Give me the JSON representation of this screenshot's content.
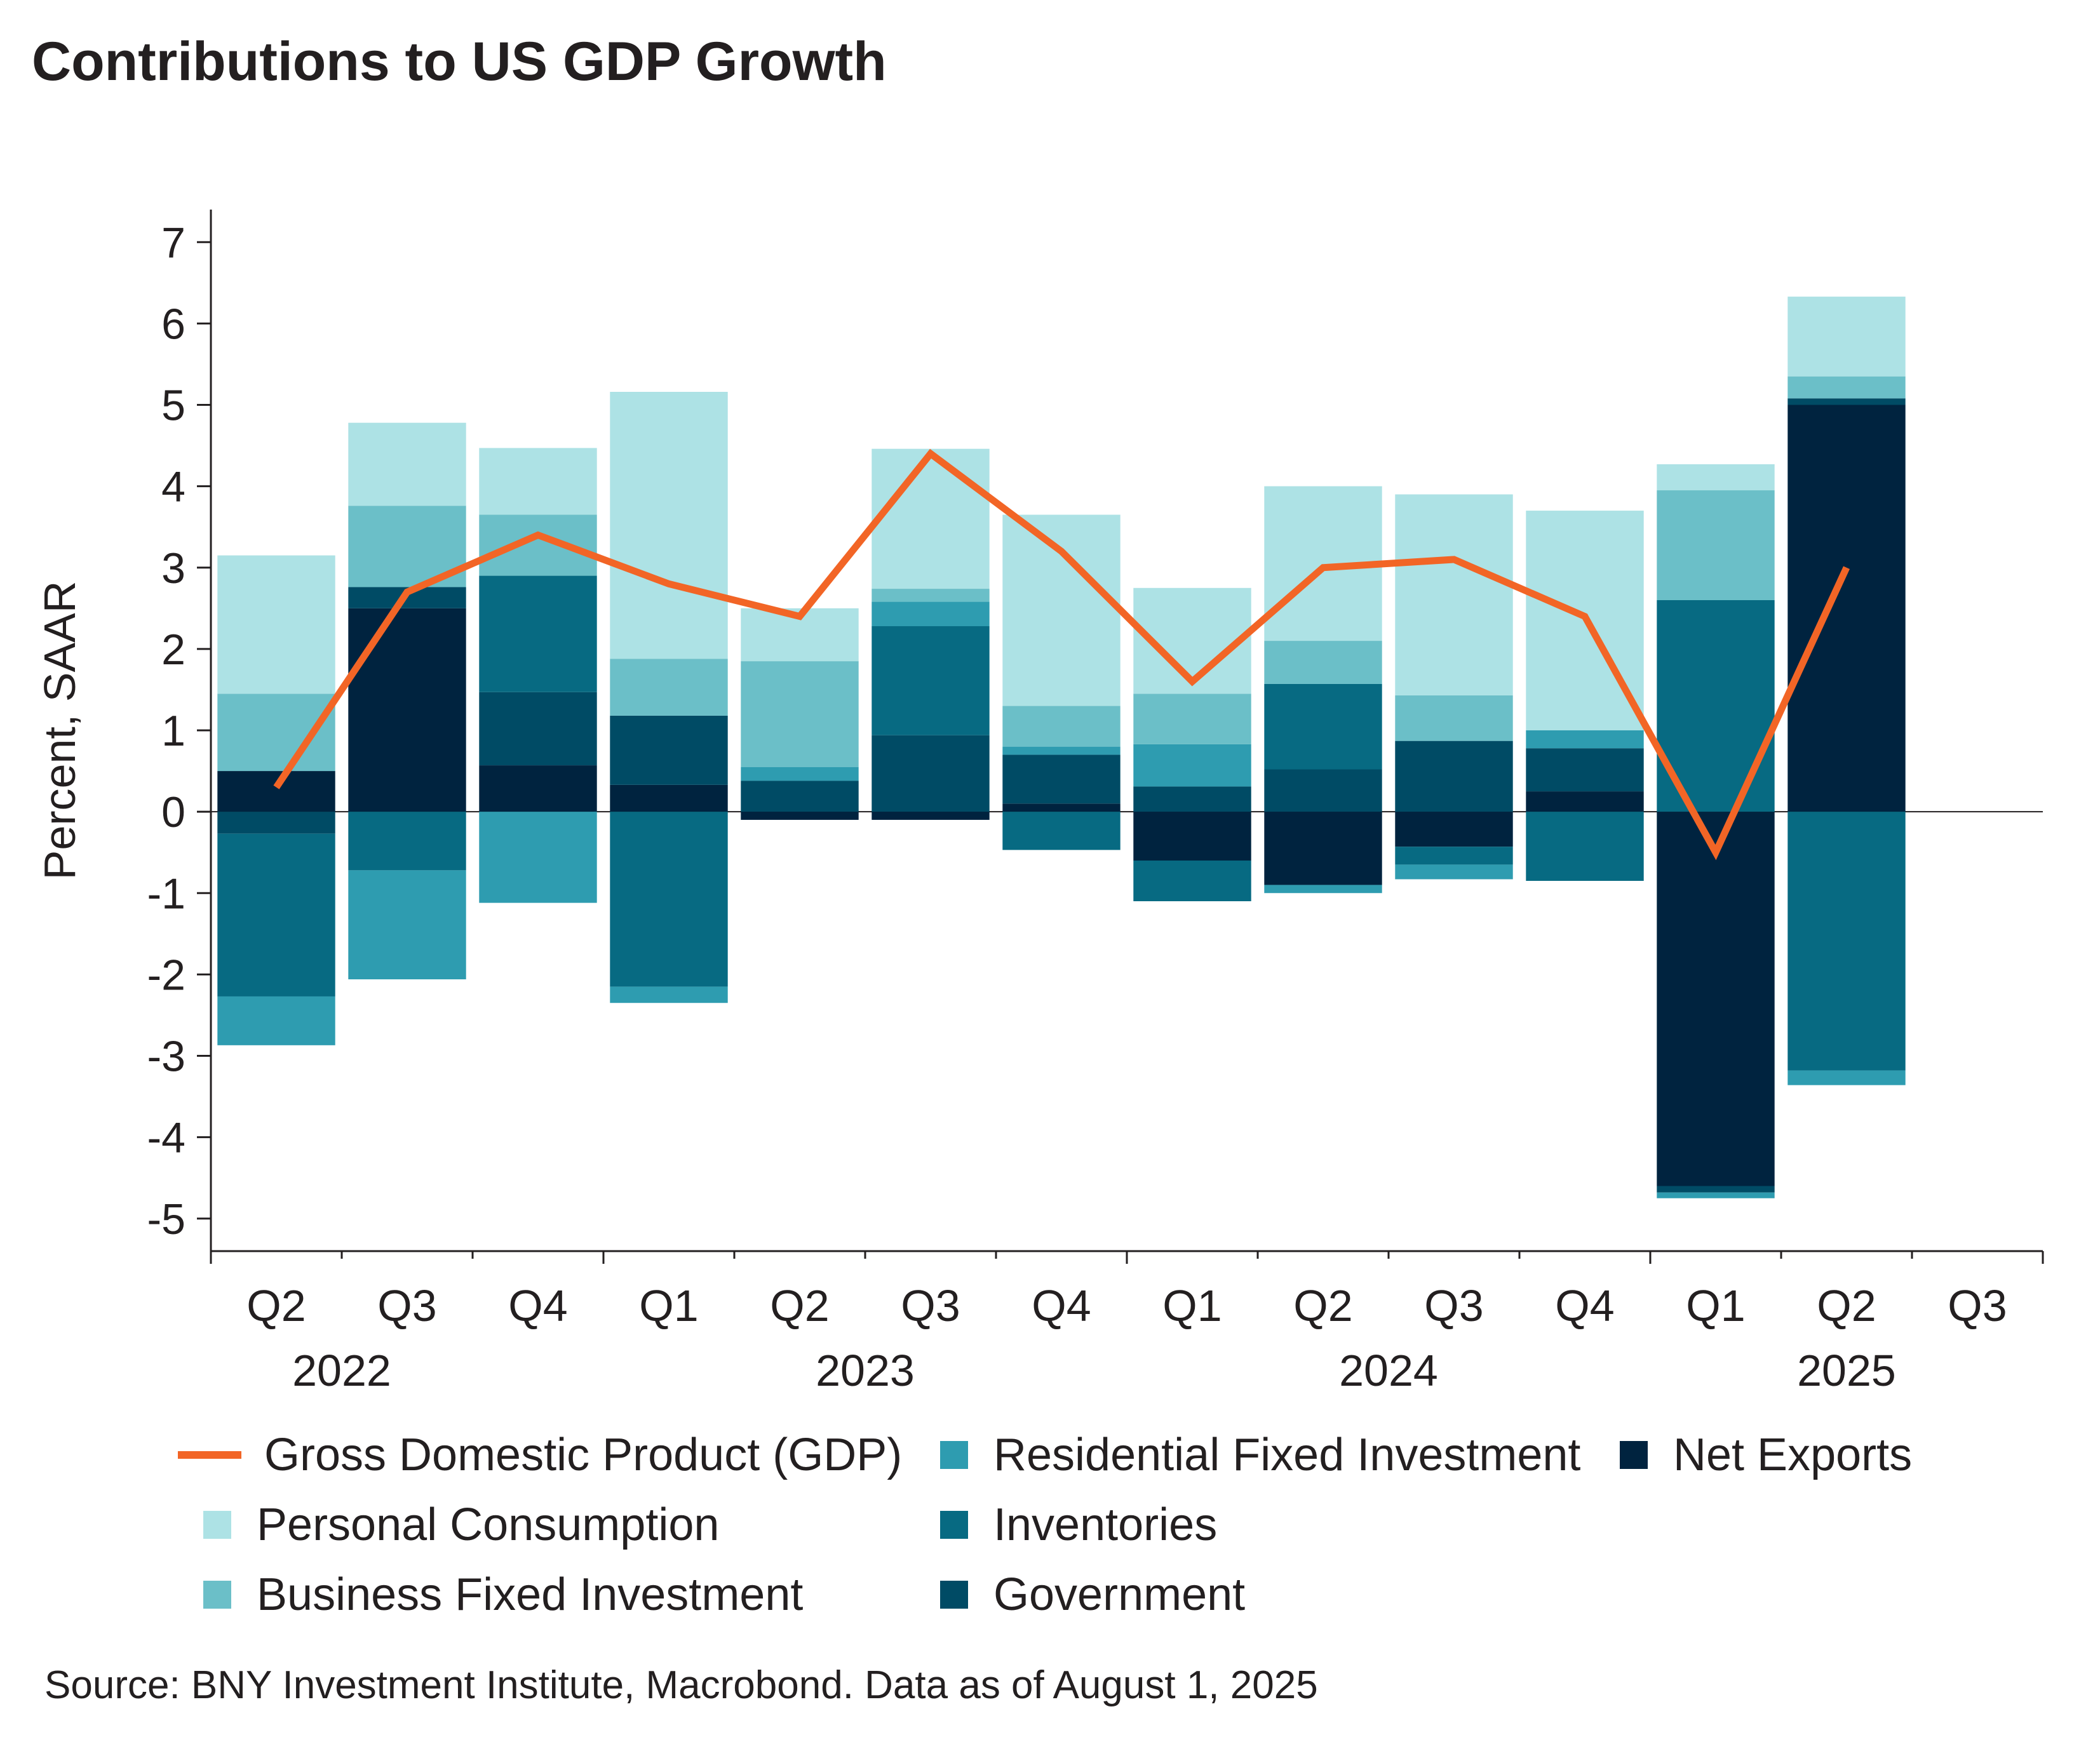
{
  "title": "Contributions to US GDP Growth",
  "source": "Source: BNY Investment Institute, Macrobond. Data as of August 1, 2025",
  "chart_data": {
    "type": "bar",
    "stacked": true,
    "ylabel": "Percent, SAAR",
    "ylim": [
      -5.4,
      7.4
    ],
    "yticks": [
      7,
      6,
      5,
      4,
      3,
      2,
      1,
      0,
      -1,
      -2,
      -3,
      -4,
      -5
    ],
    "categories": [
      "Q2",
      "Q3",
      "Q4",
      "Q1",
      "Q2",
      "Q3",
      "Q4",
      "Q1",
      "Q2",
      "Q3",
      "Q4",
      "Q1",
      "Q2",
      "Q3"
    ],
    "year_labels": [
      {
        "label": "2022",
        "center_index": 0.5
      },
      {
        "label": "2023",
        "center_index": 4.5
      },
      {
        "label": "2024",
        "center_index": 8.5
      },
      {
        "label": "2025",
        "center_index": 12
      }
    ],
    "series": [
      {
        "name": "Net Exports",
        "color": "#00233f",
        "values": [
          0.5,
          2.5,
          0.57,
          0.33,
          -0.1,
          -0.1,
          0.1,
          -0.6,
          -0.9,
          -0.43,
          0.25,
          -4.6,
          5.0,
          null
        ]
      },
      {
        "name": "Government",
        "color": "#004b65",
        "values": [
          -0.27,
          0.26,
          0.9,
          0.85,
          0.38,
          0.94,
          0.6,
          0.31,
          0.52,
          0.87,
          0.53,
          -0.08,
          0.08,
          null
        ]
      },
      {
        "name": "Inventories",
        "color": "#076a82",
        "values": [
          -2.0,
          -0.72,
          1.43,
          -2.15,
          0.0,
          1.34,
          -0.47,
          -0.5,
          1.05,
          -0.22,
          -0.85,
          2.6,
          -3.18,
          null
        ]
      },
      {
        "name": "Residential Fixed Investment",
        "color": "#2e9cb0",
        "values": [
          -0.6,
          -1.34,
          -1.12,
          -0.2,
          0.17,
          0.3,
          0.1,
          0.52,
          -0.1,
          -0.18,
          0.22,
          -0.07,
          -0.18,
          null
        ]
      },
      {
        "name": "Business Fixed Investment",
        "color": "#6bbfc8",
        "values": [
          0.95,
          1.0,
          0.75,
          0.7,
          1.3,
          0.16,
          0.5,
          0.62,
          0.53,
          0.56,
          0.0,
          1.35,
          0.27,
          null
        ]
      },
      {
        "name": "Personal Consumption",
        "color": "#ade2e5",
        "values": [
          1.7,
          1.02,
          0.82,
          3.28,
          0.65,
          1.72,
          2.35,
          1.3,
          1.9,
          2.47,
          2.7,
          0.32,
          0.98,
          null
        ]
      }
    ],
    "line": {
      "name": "Gross Domestic Product (GDP)",
      "color": "#f26526",
      "values": [
        0.3,
        2.7,
        3.4,
        2.8,
        2.4,
        4.4,
        3.2,
        1.6,
        3.0,
        3.1,
        2.4,
        -0.5,
        3.0,
        null
      ]
    },
    "legend": [
      {
        "name": "Gross Domestic Product (GDP)",
        "color": "#f26526",
        "kind": "line"
      },
      {
        "name": "Residential Fixed Investment",
        "color": "#2e9cb0",
        "kind": "box"
      },
      {
        "name": "Net Exports",
        "color": "#00233f",
        "kind": "box"
      },
      {
        "name": "Personal Consumption",
        "color": "#ade2e5",
        "kind": "box"
      },
      {
        "name": "Inventories",
        "color": "#076a82",
        "kind": "box"
      },
      {
        "name": "Business Fixed Investment",
        "color": "#6bbfc8",
        "kind": "box"
      },
      {
        "name": "Government",
        "color": "#004b65",
        "kind": "box"
      }
    ]
  }
}
